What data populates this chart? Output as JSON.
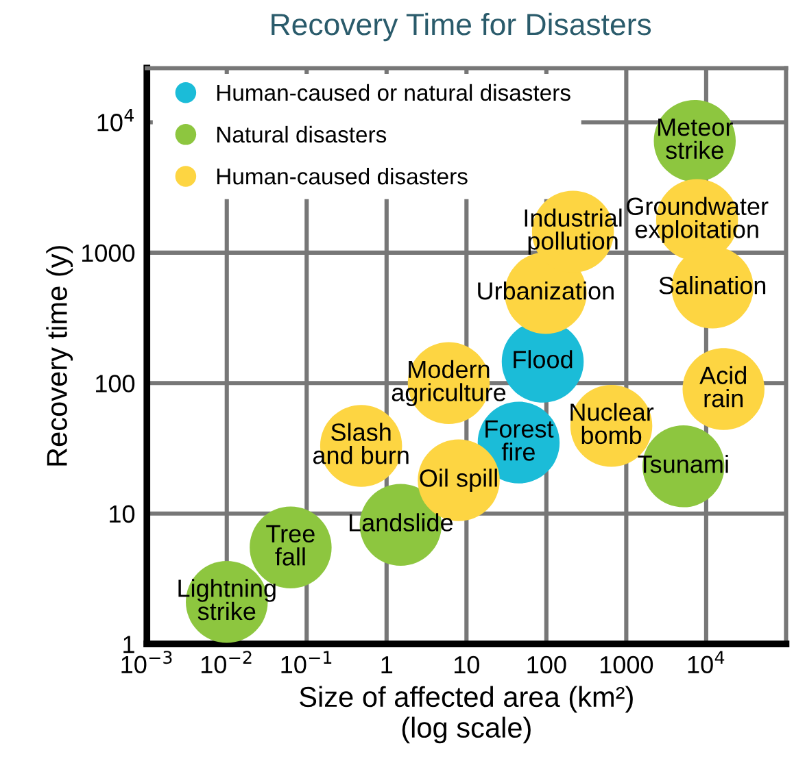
{
  "chart_data": {
    "type": "bubble",
    "title": "Recovery Time for Disasters",
    "xlabel": "Size of affected area (km²)\n(log scale)",
    "ylabel": "Recovery time (y)",
    "log": "xy",
    "grid": true,
    "legend": "top left",
    "marker": "circle",
    "xlim": [
      0.001,
      100000
    ],
    "ylim": [
      1,
      26000
    ],
    "xticks": [
      {
        "value": 0.001,
        "label": "10$^{−3}$"
      },
      {
        "value": 0.01,
        "label": "10$^{−2}$"
      },
      {
        "value": 0.1,
        "label": "10$^{−1}$"
      },
      1,
      10,
      100,
      1000,
      {
        "value": 10000,
        "label": "10$^{4}$"
      }
    ],
    "yticks": [
      1,
      10,
      100,
      1000,
      {
        "value": 10000,
        "label": "10$^{4}$"
      }
    ],
    "series": [
      {
        "name": "Human-caused or natural disasters",
        "color": "#1bbcd8",
        "x": [
          45,
          90
        ],
        "values": [
          35,
          146
        ],
        "sizes": [
          1,
          1
        ]
      },
      {
        "name": "Natural disasters",
        "color": "#8dc63f",
        "x": [
          0.01,
          0.063,
          1.5,
          7200,
          5200
        ],
        "values": [
          2.1,
          5.5,
          8.2,
          7200,
          23
        ],
        "sizes": [
          1,
          1,
          1,
          1,
          1
        ]
      },
      {
        "name": "Human-caused disasters",
        "color": "#fdd542",
        "x": [
          0.48,
          8,
          6,
          98,
          215,
          650,
          7700,
          12000,
          16500
        ],
        "values": [
          33,
          18,
          100,
          490,
          1450,
          47,
          1780,
          540,
          90
        ],
        "sizes": [
          1,
          1,
          1,
          1,
          1,
          1,
          1,
          1,
          1
        ]
      }
    ],
    "annotations": [
      {
        "text": "Forest\nfire",
        "x": 45,
        "y": 35
      },
      {
        "text": "Flood",
        "x": 90,
        "y": 146
      },
      {
        "text": "Lightning\nstrike",
        "x": 0.01,
        "y": 2.1
      },
      {
        "text": "Tree\nfall",
        "x": 0.063,
        "y": 5.5
      },
      {
        "text": "Landslide",
        "x": 1.5,
        "y": 8.2
      },
      {
        "text": "Meteor\nstrike",
        "x": 7200,
        "y": 7200
      },
      {
        "text": "Tsunami",
        "x": 5200,
        "y": 23
      },
      {
        "text": "Slash\nand burn",
        "x": 0.48,
        "y": 33
      },
      {
        "text": "Oil spill",
        "x": 8,
        "y": 18
      },
      {
        "text": "Modern\nagriculture",
        "x": 6,
        "y": 100
      },
      {
        "text": "Urbanization",
        "x": 98,
        "y": 490
      },
      {
        "text": "Industrial\npollution",
        "x": 215,
        "y": 1450
      },
      {
        "text": "Nuclear\nbomb",
        "x": 650,
        "y": 47
      },
      {
        "text": "Groundwater\nexploitation",
        "x": 7700,
        "y": 1780
      },
      {
        "text": "Salination",
        "x": 12000,
        "y": 540
      },
      {
        "text": "Acid\nrain",
        "x": 16500,
        "y": 90
      }
    ]
  }
}
